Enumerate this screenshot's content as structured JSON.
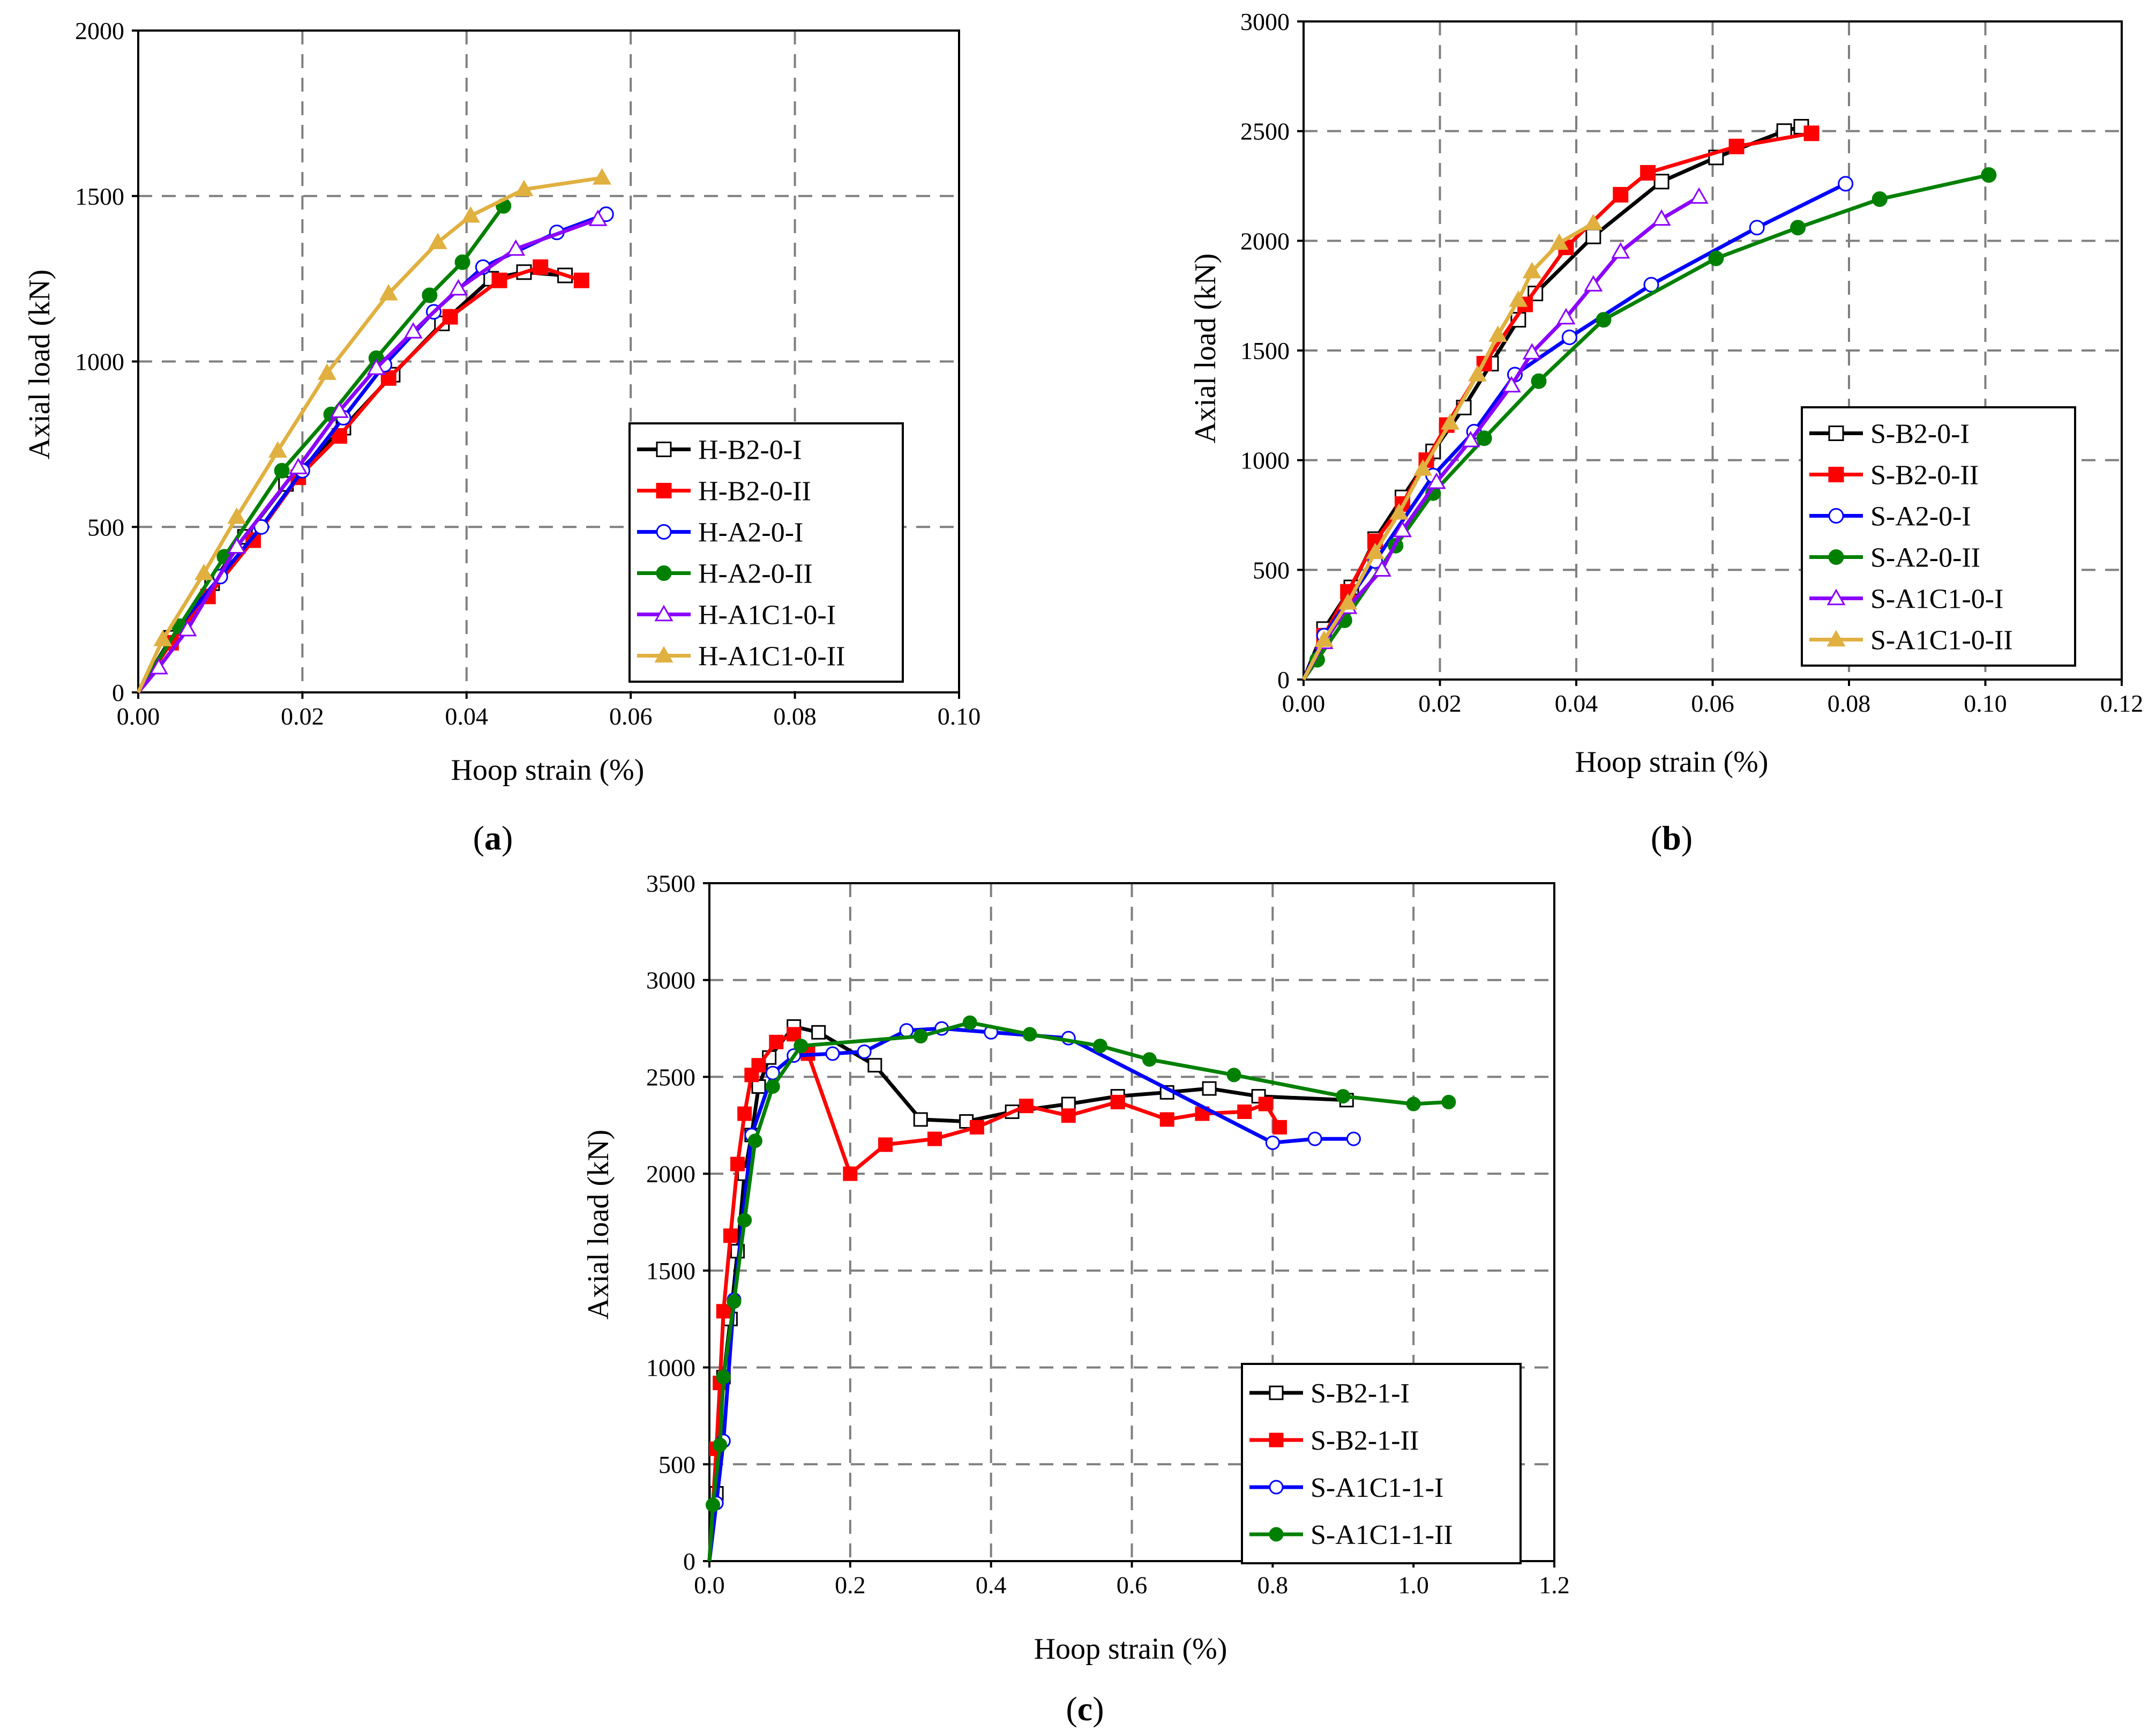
{
  "figure": {
    "panels": [
      {
        "id": "a",
        "label_prefix": "(",
        "label_letter": "a",
        "label_suffix": ")"
      },
      {
        "id": "b",
        "label_prefix": "(",
        "label_letter": "b",
        "label_suffix": ")"
      },
      {
        "id": "c",
        "label_prefix": "(",
        "label_letter": "c",
        "label_suffix": ")"
      }
    ]
  },
  "chart_data": [
    {
      "id": "a",
      "type": "line",
      "xlabel": "Hoop strain (%)",
      "ylabel": "Axial load (kN)",
      "xlim": [
        0,
        0.1
      ],
      "ylim": [
        0,
        2000
      ],
      "xticks": [
        "0.00",
        "0.02",
        "0.04",
        "0.06",
        "0.08",
        "0.10"
      ],
      "yticks": [
        "0",
        "500",
        "1000",
        "1500",
        "2000"
      ],
      "legend_position": "bottom-right",
      "series": [
        {
          "name": "H-B2-0-I",
          "color": "#000000",
          "marker": "square-open",
          "points": [
            [
              0,
              0
            ],
            [
              0.004,
              165
            ],
            [
              0.009,
              330
            ],
            [
              0.013,
              470
            ],
            [
              0.018,
              630
            ],
            [
              0.025,
              800
            ],
            [
              0.031,
              960
            ],
            [
              0.037,
              1115
            ],
            [
              0.043,
              1250
            ],
            [
              0.047,
              1270
            ],
            [
              0.052,
              1260
            ]
          ]
        },
        {
          "name": "H-B2-0-II",
          "color": "#ff0000",
          "marker": "square-filled",
          "points": [
            [
              0,
              0
            ],
            [
              0.004,
              150
            ],
            [
              0.0085,
              290
            ],
            [
              0.014,
              460
            ],
            [
              0.0195,
              650
            ],
            [
              0.0245,
              775
            ],
            [
              0.0305,
              950
            ],
            [
              0.038,
              1135
            ],
            [
              0.044,
              1245
            ],
            [
              0.049,
              1285
            ],
            [
              0.054,
              1245
            ]
          ]
        },
        {
          "name": "H-A2-0-I",
          "color": "#0000ff",
          "marker": "circle-open",
          "points": [
            [
              0,
              0
            ],
            [
              0.005,
              200
            ],
            [
              0.01,
              350
            ],
            [
              0.015,
              500
            ],
            [
              0.02,
              670
            ],
            [
              0.025,
              830
            ],
            [
              0.03,
              990
            ],
            [
              0.036,
              1150
            ],
            [
              0.042,
              1285
            ],
            [
              0.051,
              1390
            ],
            [
              0.057,
              1445
            ]
          ]
        },
        {
          "name": "H-A2-0-II",
          "color": "#008000",
          "marker": "circle-filled",
          "points": [
            [
              0,
              0
            ],
            [
              0.005,
              200
            ],
            [
              0.0105,
              410
            ],
            [
              0.0175,
              670
            ],
            [
              0.0235,
              840
            ],
            [
              0.029,
              1010
            ],
            [
              0.0355,
              1200
            ],
            [
              0.0395,
              1300
            ],
            [
              0.0445,
              1470
            ]
          ]
        },
        {
          "name": "H-A1C1-0-I",
          "color": "#8b00ff",
          "marker": "triangle-open",
          "points": [
            [
              0,
              0
            ],
            [
              0.0025,
              75
            ],
            [
              0.006,
              190
            ],
            [
              0.012,
              440
            ],
            [
              0.0195,
              680
            ],
            [
              0.0245,
              850
            ],
            [
              0.029,
              980
            ],
            [
              0.0335,
              1090
            ],
            [
              0.039,
              1220
            ],
            [
              0.046,
              1340
            ],
            [
              0.056,
              1430
            ]
          ]
        },
        {
          "name": "H-A1C1-0-II",
          "color": "#e0b040",
          "marker": "triangle-filled",
          "points": [
            [
              0,
              0
            ],
            [
              0.003,
              160
            ],
            [
              0.008,
              360
            ],
            [
              0.012,
              530
            ],
            [
              0.017,
              730
            ],
            [
              0.023,
              965
            ],
            [
              0.0305,
              1205
            ],
            [
              0.0365,
              1360
            ],
            [
              0.0405,
              1440
            ],
            [
              0.047,
              1520
            ],
            [
              0.0565,
              1555
            ]
          ]
        }
      ]
    },
    {
      "id": "b",
      "type": "line",
      "xlabel": "Hoop strain (%)",
      "ylabel": "Axial load (kN)",
      "xlim": [
        0,
        0.12
      ],
      "ylim": [
        0,
        3000
      ],
      "xticks": [
        "0.00",
        "0.02",
        "0.04",
        "0.06",
        "0.08",
        "0.10",
        "0.12"
      ],
      "yticks": [
        "0",
        "500",
        "1000",
        "1500",
        "2000",
        "2500",
        "3000"
      ],
      "legend_position": "bottom-right",
      "series": [
        {
          "name": "S-B2-0-I",
          "color": "#000000",
          "marker": "square-open",
          "points": [
            [
              0,
              0
            ],
            [
              0.003,
              230
            ],
            [
              0.007,
              420
            ],
            [
              0.0105,
              640
            ],
            [
              0.0145,
              830
            ],
            [
              0.019,
              1040
            ],
            [
              0.0235,
              1240
            ],
            [
              0.0275,
              1440
            ],
            [
              0.0315,
              1640
            ],
            [
              0.034,
              1760
            ],
            [
              0.0425,
              2020
            ],
            [
              0.0525,
              2270
            ],
            [
              0.0605,
              2380
            ],
            [
              0.0705,
              2500
            ],
            [
              0.073,
              2520
            ]
          ]
        },
        {
          "name": "S-B2-0-II",
          "color": "#ff0000",
          "marker": "square-filled",
          "points": [
            [
              0,
              0
            ],
            [
              0.003,
              200
            ],
            [
              0.0065,
              400
            ],
            [
              0.0105,
              630
            ],
            [
              0.0145,
              800
            ],
            [
              0.018,
              1000
            ],
            [
              0.021,
              1160
            ],
            [
              0.0265,
              1440
            ],
            [
              0.0325,
              1710
            ],
            [
              0.0385,
              1970
            ],
            [
              0.0465,
              2210
            ],
            [
              0.0505,
              2310
            ],
            [
              0.0635,
              2430
            ],
            [
              0.0745,
              2490
            ]
          ]
        },
        {
          "name": "S-A2-0-I",
          "color": "#0000ff",
          "marker": "circle-open",
          "points": [
            [
              0,
              0
            ],
            [
              0.003,
              200
            ],
            [
              0.0105,
              540
            ],
            [
              0.019,
              930
            ],
            [
              0.025,
              1130
            ],
            [
              0.031,
              1390
            ],
            [
              0.039,
              1560
            ],
            [
              0.051,
              1800
            ],
            [
              0.0665,
              2060
            ],
            [
              0.0795,
              2260
            ]
          ]
        },
        {
          "name": "S-A2-0-II",
          "color": "#008000",
          "marker": "circle-filled",
          "points": [
            [
              0,
              0
            ],
            [
              0.002,
              90
            ],
            [
              0.006,
              270
            ],
            [
              0.0135,
              610
            ],
            [
              0.019,
              850
            ],
            [
              0.0265,
              1100
            ],
            [
              0.0345,
              1360
            ],
            [
              0.044,
              1640
            ],
            [
              0.0605,
              1920
            ],
            [
              0.0725,
              2060
            ],
            [
              0.0845,
              2190
            ],
            [
              0.1005,
              2300
            ]
          ]
        },
        {
          "name": "S-A1C1-0-I",
          "color": "#8b00ff",
          "marker": "triangle-open",
          "points": [
            [
              0,
              0
            ],
            [
              0.003,
              170
            ],
            [
              0.0065,
              330
            ],
            [
              0.0115,
              500
            ],
            [
              0.0145,
              680
            ],
            [
              0.0195,
              900
            ],
            [
              0.0245,
              1090
            ],
            [
              0.0305,
              1340
            ],
            [
              0.0335,
              1490
            ],
            [
              0.0385,
              1650
            ],
            [
              0.0425,
              1800
            ],
            [
              0.0465,
              1950
            ],
            [
              0.0525,
              2100
            ],
            [
              0.058,
              2200
            ]
          ]
        },
        {
          "name": "S-A1C1-0-II",
          "color": "#e0b040",
          "marker": "triangle-filled",
          "points": [
            [
              0,
              0
            ],
            [
              0.003,
              180
            ],
            [
              0.0065,
              350
            ],
            [
              0.0105,
              580
            ],
            [
              0.014,
              760
            ],
            [
              0.0175,
              960
            ],
            [
              0.0215,
              1170
            ],
            [
              0.0255,
              1390
            ],
            [
              0.0285,
              1570
            ],
            [
              0.0315,
              1730
            ],
            [
              0.0335,
              1860
            ],
            [
              0.0375,
              1990
            ],
            [
              0.0425,
              2080
            ]
          ]
        }
      ]
    },
    {
      "id": "c",
      "type": "line",
      "xlabel": "Hoop strain (%)",
      "ylabel": "Axial load (kN)",
      "xlim": [
        0,
        1.2
      ],
      "ylim": [
        0,
        3500
      ],
      "xticks": [
        "0.0",
        "0.2",
        "0.4",
        "0.6",
        "0.8",
        "1.0",
        "1.2"
      ],
      "yticks": [
        "0",
        "500",
        "1000",
        "1500",
        "2000",
        "2500",
        "3000",
        "3500"
      ],
      "legend_position": "bottom-right",
      "series": [
        {
          "name": "S-B2-1-I",
          "color": "#000000",
          "marker": "square-open",
          "points": [
            [
              0,
              0
            ],
            [
              0.01,
              350
            ],
            [
              0.02,
              950
            ],
            [
              0.03,
              1250
            ],
            [
              0.04,
              1600
            ],
            [
              0.05,
              2000
            ],
            [
              0.06,
              2200
            ],
            [
              0.07,
              2450
            ],
            [
              0.085,
              2600
            ],
            [
              0.12,
              2760
            ],
            [
              0.155,
              2730
            ],
            [
              0.235,
              2560
            ],
            [
              0.3,
              2280
            ],
            [
              0.365,
              2270
            ],
            [
              0.43,
              2320
            ],
            [
              0.51,
              2360
            ],
            [
              0.58,
              2400
            ],
            [
              0.65,
              2420
            ],
            [
              0.71,
              2440
            ],
            [
              0.78,
              2400
            ],
            [
              0.905,
              2380
            ]
          ]
        },
        {
          "name": "S-B2-1-II",
          "color": "#ff0000",
          "marker": "square-filled",
          "points": [
            [
              0,
              0
            ],
            [
              0.01,
              580
            ],
            [
              0.015,
              920
            ],
            [
              0.02,
              1290
            ],
            [
              0.03,
              1680
            ],
            [
              0.04,
              2050
            ],
            [
              0.05,
              2310
            ],
            [
              0.06,
              2510
            ],
            [
              0.07,
              2560
            ],
            [
              0.095,
              2680
            ],
            [
              0.12,
              2720
            ],
            [
              0.14,
              2620
            ],
            [
              0.2,
              2000
            ],
            [
              0.25,
              2150
            ],
            [
              0.32,
              2180
            ],
            [
              0.38,
              2240
            ],
            [
              0.45,
              2350
            ],
            [
              0.51,
              2300
            ],
            [
              0.58,
              2370
            ],
            [
              0.65,
              2280
            ],
            [
              0.7,
              2310
            ],
            [
              0.76,
              2320
            ],
            [
              0.79,
              2360
            ],
            [
              0.81,
              2240
            ]
          ]
        },
        {
          "name": "S-A1C1-1-I",
          "color": "#0000ff",
          "marker": "circle-open",
          "points": [
            [
              0,
              0
            ],
            [
              0.01,
              300
            ],
            [
              0.02,
              620
            ],
            [
              0.035,
              1350
            ],
            [
              0.06,
              2200
            ],
            [
              0.09,
              2520
            ],
            [
              0.12,
              2610
            ],
            [
              0.175,
              2620
            ],
            [
              0.22,
              2630
            ],
            [
              0.28,
              2740
            ],
            [
              0.33,
              2750
            ],
            [
              0.4,
              2730
            ],
            [
              0.51,
              2700
            ],
            [
              0.8,
              2160
            ],
            [
              0.86,
              2180
            ],
            [
              0.915,
              2180
            ]
          ]
        },
        {
          "name": "S-A1C1-1-II",
          "color": "#008000",
          "marker": "circle-filled",
          "points": [
            [
              0,
              0
            ],
            [
              0.005,
              290
            ],
            [
              0.015,
              600
            ],
            [
              0.02,
              950
            ],
            [
              0.035,
              1340
            ],
            [
              0.05,
              1760
            ],
            [
              0.065,
              2170
            ],
            [
              0.09,
              2450
            ],
            [
              0.13,
              2660
            ],
            [
              0.3,
              2710
            ],
            [
              0.37,
              2780
            ],
            [
              0.455,
              2720
            ],
            [
              0.555,
              2660
            ],
            [
              0.625,
              2590
            ],
            [
              0.745,
              2510
            ],
            [
              0.9,
              2400
            ],
            [
              1.0,
              2360
            ],
            [
              1.05,
              2370
            ]
          ]
        }
      ]
    }
  ]
}
